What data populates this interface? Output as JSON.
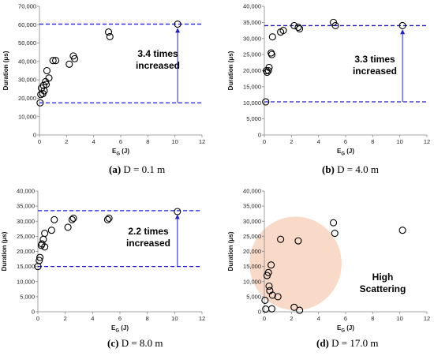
{
  "colors": {
    "axis": "#888888",
    "marker": "#000000",
    "dashed": "#1f1fd6",
    "arrow": "#1f1fd6",
    "scatter_region": "#f8d2bd"
  },
  "chart_data": [
    {
      "type": "scatter",
      "caption_label": "(a)",
      "caption_text": "D = 0.1 m",
      "ylabel": "Duration (μs)",
      "xlabel_main": "E",
      "xlabel_sub": "G",
      "xlabel_unit": "(J)",
      "xlim": [
        0,
        12
      ],
      "ylim": [
        0,
        70000
      ],
      "xticks": [
        0,
        2,
        4,
        6,
        8,
        10,
        12
      ],
      "yticks": [
        0,
        10000,
        20000,
        30000,
        40000,
        50000,
        60000,
        70000
      ],
      "ytick_labels": [
        "0",
        "10,000",
        "20,000",
        "30,000",
        "40,000",
        "50,000",
        "60,000",
        "70,000"
      ],
      "grid": false,
      "points": [
        [
          0.05,
          17500
        ],
        [
          0.1,
          22000
        ],
        [
          0.15,
          25500
        ],
        [
          0.25,
          22500
        ],
        [
          0.3,
          27000
        ],
        [
          0.35,
          24000
        ],
        [
          0.45,
          29000
        ],
        [
          0.5,
          27500
        ],
        [
          0.55,
          35000
        ],
        [
          0.7,
          31000
        ],
        [
          1.0,
          40500
        ],
        [
          1.2,
          40500
        ],
        [
          2.2,
          38500
        ],
        [
          2.5,
          43000
        ],
        [
          2.6,
          41500
        ],
        [
          5.1,
          56000
        ],
        [
          5.2,
          53500
        ],
        [
          10.2,
          60300
        ]
      ],
      "hlines": [
        60300,
        17500
      ],
      "arrow": {
        "x": 10.2,
        "y_from": 17500,
        "y_to": 60300
      },
      "annotation": [
        "3.4 times",
        "increased"
      ]
    },
    {
      "type": "scatter",
      "caption_label": "(b)",
      "caption_text": "D = 4.0 m",
      "ylabel": "Duration (μs)",
      "xlabel_main": "E",
      "xlabel_sub": "G",
      "xlabel_unit": "(J)",
      "xlim": [
        0,
        12
      ],
      "ylim": [
        0,
        40000
      ],
      "xticks": [
        0,
        2,
        4,
        6,
        8,
        10,
        12
      ],
      "yticks": [
        0,
        5000,
        10000,
        15000,
        20000,
        25000,
        30000,
        35000,
        40000
      ],
      "ytick_labels": [
        "0",
        "5,000",
        "10,000",
        "15,000",
        "20,000",
        "25,000",
        "30,000",
        "35,000",
        "40,000"
      ],
      "grid": false,
      "points": [
        [
          0.1,
          10300
        ],
        [
          0.15,
          20000
        ],
        [
          0.2,
          19500
        ],
        [
          0.3,
          20000
        ],
        [
          0.35,
          21000
        ],
        [
          0.5,
          25500
        ],
        [
          0.55,
          25000
        ],
        [
          0.6,
          30500
        ],
        [
          1.2,
          32000
        ],
        [
          1.4,
          32500
        ],
        [
          2.2,
          34000
        ],
        [
          2.5,
          33500
        ],
        [
          2.6,
          33000
        ],
        [
          5.1,
          35000
        ],
        [
          5.25,
          34000
        ],
        [
          10.2,
          34000
        ]
      ],
      "hlines": [
        34000,
        10300
      ],
      "arrow": {
        "x": 10.2,
        "y_from": 10300,
        "y_to": 34000
      },
      "annotation": [
        "3.3 times",
        "increased"
      ]
    },
    {
      "type": "scatter",
      "caption_label": "(c)",
      "caption_text": "D = 8.0 m",
      "ylabel": "Duration (μs)",
      "xlabel_main": "E",
      "xlabel_sub": "G",
      "xlabel_unit": "(J)",
      "xlim": [
        0,
        12
      ],
      "ylim": [
        0,
        40000
      ],
      "xticks": [
        0,
        2,
        4,
        6,
        8,
        10,
        12
      ],
      "yticks": [
        0,
        5000,
        10000,
        15000,
        20000,
        25000,
        30000,
        35000,
        40000
      ],
      "ytick_labels": [
        "0",
        "5,000",
        "10,000",
        "15,000",
        "20,000",
        "25,000",
        "30,000",
        "35,000",
        "40,000"
      ],
      "grid": false,
      "points": [
        [
          0.0,
          15000
        ],
        [
          0.1,
          17000
        ],
        [
          0.15,
          18000
        ],
        [
          0.25,
          22000
        ],
        [
          0.3,
          22500
        ],
        [
          0.4,
          24000
        ],
        [
          0.5,
          26000
        ],
        [
          0.5,
          21500
        ],
        [
          1.0,
          27000
        ],
        [
          1.2,
          30500
        ],
        [
          2.2,
          28000
        ],
        [
          2.5,
          30500
        ],
        [
          2.6,
          31000
        ],
        [
          5.1,
          30500
        ],
        [
          5.2,
          31000
        ],
        [
          10.2,
          33200
        ]
      ],
      "hlines": [
        33500,
        15000
      ],
      "arrow": {
        "x": 10.2,
        "y_from": 15000,
        "y_to": 33500
      },
      "annotation": [
        "2.2 times",
        "increased"
      ]
    },
    {
      "type": "scatter",
      "caption_label": "(d)",
      "caption_text": "D = 17.0 m",
      "ylabel": "Duration (μs)",
      "xlabel_main": "E",
      "xlabel_sub": "G",
      "xlabel_unit": "(J)",
      "xlim": [
        0,
        12
      ],
      "ylim": [
        0,
        40000
      ],
      "xticks": [
        0,
        2,
        4,
        6,
        8,
        10,
        12
      ],
      "yticks": [
        0,
        5000,
        10000,
        15000,
        20000,
        25000,
        30000,
        35000,
        40000
      ],
      "ytick_labels": [
        "0",
        "5,000",
        "10,000",
        "15,000",
        "20,000",
        "25,000",
        "30,000",
        "35,000",
        "40,000"
      ],
      "grid": false,
      "points": [
        [
          0.05,
          3800
        ],
        [
          0.1,
          900
        ],
        [
          0.2,
          12000
        ],
        [
          0.3,
          13000
        ],
        [
          0.35,
          8500
        ],
        [
          0.4,
          7000
        ],
        [
          0.5,
          15500
        ],
        [
          0.55,
          1000
        ],
        [
          0.6,
          5500
        ],
        [
          1.0,
          5000
        ],
        [
          1.2,
          24000
        ],
        [
          2.2,
          1500
        ],
        [
          2.5,
          23500
        ],
        [
          2.6,
          500
        ],
        [
          5.1,
          29500
        ],
        [
          5.2,
          26000
        ],
        [
          10.2,
          27000
        ]
      ],
      "scatter_region": {
        "cx": 2.3,
        "cy": 16000,
        "rx": 3.4,
        "ry": 15500
      },
      "annotation": [
        "High",
        "Scattering"
      ]
    }
  ]
}
